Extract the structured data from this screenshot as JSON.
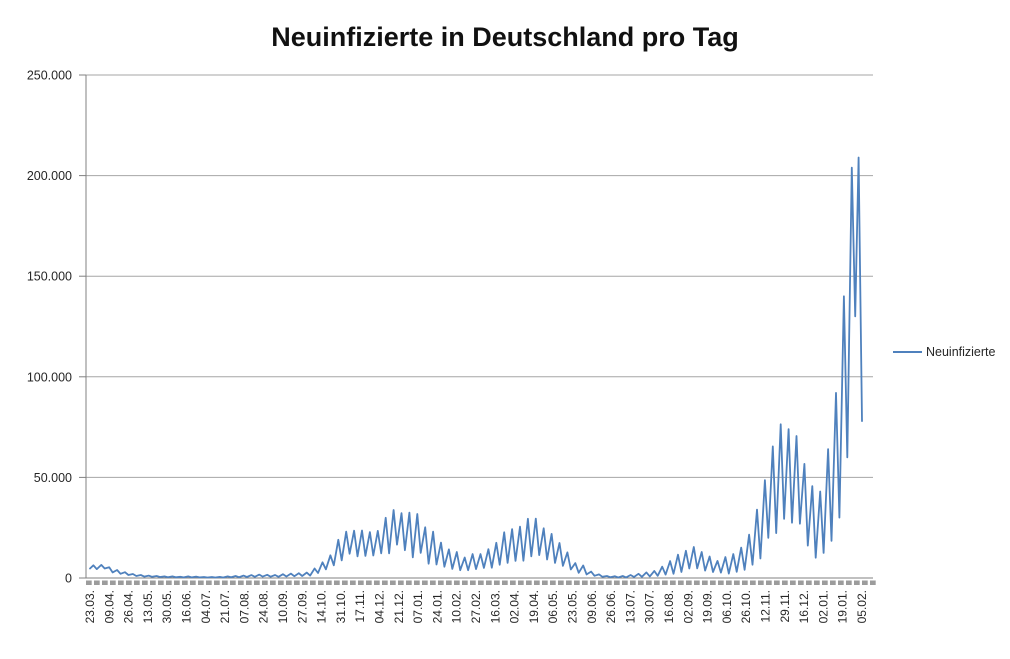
{
  "chart_data": {
    "type": "line",
    "title": "Neuinfizierte in Deutschland pro Tag",
    "legend": {
      "position": "right",
      "entries": [
        {
          "label": "Neuinfizierte",
          "color": "#4F81BD"
        }
      ]
    },
    "grid": "horizontal-only",
    "y_axis": {
      "range": [
        0,
        250000
      ],
      "tick_step": 50000,
      "ticks": [
        {
          "value": 0,
          "label": "0"
        },
        {
          "value": 50000,
          "label": "50.000"
        },
        {
          "value": 100000,
          "label": "100.000"
        },
        {
          "value": 150000,
          "label": "150.000"
        },
        {
          "value": 200000,
          "label": "200.000"
        },
        {
          "value": 250000,
          "label": "250.000"
        }
      ]
    },
    "x_axis": {
      "total_days": 685,
      "labels": [
        "23.03.",
        "09.04.",
        "26.04.",
        "13.05.",
        "30.05.",
        "16.06.",
        "04.07.",
        "21.07.",
        "07.08.",
        "24.08.",
        "10.09.",
        "27.09.",
        "14.10.",
        "31.10.",
        "17.11.",
        "04.12.",
        "21.12.",
        "07.01.",
        "24.01.",
        "10.02.",
        "27.02.",
        "16.03.",
        "02.04.",
        "19.04.",
        "06.05.",
        "23.05.",
        "09.06.",
        "26.06.",
        "13.07.",
        "30.07.",
        "16.08.",
        "02.09.",
        "19.09.",
        "06.10.",
        "26.10.",
        "12.11.",
        "29.11.",
        "16.12.",
        "02.01.",
        "19.01.",
        "05.02."
      ]
    },
    "series": [
      {
        "name": "Neuinfizierte",
        "color": "#4F81BD",
        "points_format": "[day_index, daily_new_infections]",
        "points": [
          [
            0,
            4700
          ],
          [
            3,
            6300
          ],
          [
            6,
            4400
          ],
          [
            10,
            6500
          ],
          [
            13,
            4700
          ],
          [
            17,
            5300
          ],
          [
            20,
            2800
          ],
          [
            24,
            4000
          ],
          [
            27,
            2100
          ],
          [
            31,
            2900
          ],
          [
            34,
            1500
          ],
          [
            38,
            2000
          ],
          [
            41,
            1000
          ],
          [
            45,
            1500
          ],
          [
            48,
            700
          ],
          [
            52,
            1200
          ],
          [
            55,
            600
          ],
          [
            59,
            1000
          ],
          [
            62,
            500
          ],
          [
            66,
            800
          ],
          [
            69,
            400
          ],
          [
            73,
            800
          ],
          [
            76,
            350
          ],
          [
            80,
            600
          ],
          [
            83,
            300
          ],
          [
            87,
            800
          ],
          [
            90,
            300
          ],
          [
            94,
            700
          ],
          [
            97,
            300
          ],
          [
            101,
            500
          ],
          [
            104,
            250
          ],
          [
            108,
            500
          ],
          [
            111,
            250
          ],
          [
            115,
            550
          ],
          [
            118,
            250
          ],
          [
            122,
            800
          ],
          [
            125,
            350
          ],
          [
            129,
            1000
          ],
          [
            132,
            400
          ],
          [
            136,
            1200
          ],
          [
            139,
            500
          ],
          [
            143,
            1450
          ],
          [
            146,
            600
          ],
          [
            150,
            1700
          ],
          [
            153,
            700
          ],
          [
            157,
            1600
          ],
          [
            160,
            650
          ],
          [
            164,
            1500
          ],
          [
            167,
            600
          ],
          [
            171,
            1900
          ],
          [
            174,
            750
          ],
          [
            178,
            2200
          ],
          [
            181,
            900
          ],
          [
            185,
            2400
          ],
          [
            188,
            1000
          ],
          [
            192,
            2700
          ],
          [
            195,
            1200
          ],
          [
            199,
            4700
          ],
          [
            202,
            2500
          ],
          [
            206,
            7800
          ],
          [
            209,
            4300
          ],
          [
            213,
            11300
          ],
          [
            216,
            6300
          ],
          [
            220,
            19000
          ],
          [
            223,
            8800
          ],
          [
            227,
            23000
          ],
          [
            230,
            12100
          ],
          [
            234,
            23500
          ],
          [
            237,
            10800
          ],
          [
            241,
            23600
          ],
          [
            244,
            11000
          ],
          [
            248,
            22800
          ],
          [
            251,
            11200
          ],
          [
            255,
            23400
          ],
          [
            258,
            12300
          ],
          [
            262,
            29900
          ],
          [
            265,
            12300
          ],
          [
            269,
            33800
          ],
          [
            272,
            16600
          ],
          [
            276,
            32200
          ],
          [
            279,
            13800
          ],
          [
            283,
            32500
          ],
          [
            286,
            10300
          ],
          [
            290,
            31800
          ],
          [
            293,
            12500
          ],
          [
            297,
            25200
          ],
          [
            300,
            7100
          ],
          [
            304,
            23000
          ],
          [
            307,
            6700
          ],
          [
            311,
            17600
          ],
          [
            314,
            5600
          ],
          [
            318,
            14200
          ],
          [
            321,
            4500
          ],
          [
            325,
            12900
          ],
          [
            328,
            3900
          ],
          [
            332,
            10200
          ],
          [
            335,
            3900
          ],
          [
            339,
            11900
          ],
          [
            342,
            4400
          ],
          [
            346,
            11900
          ],
          [
            349,
            5000
          ],
          [
            353,
            14300
          ],
          [
            356,
            5100
          ],
          [
            360,
            17500
          ],
          [
            363,
            6600
          ],
          [
            367,
            22700
          ],
          [
            370,
            7500
          ],
          [
            374,
            24300
          ],
          [
            377,
            8500
          ],
          [
            381,
            25500
          ],
          [
            384,
            8600
          ],
          [
            388,
            29400
          ],
          [
            391,
            10800
          ],
          [
            395,
            29500
          ],
          [
            398,
            11400
          ],
          [
            402,
            24700
          ],
          [
            405,
            9200
          ],
          [
            409,
            21900
          ],
          [
            412,
            7500
          ],
          [
            416,
            17400
          ],
          [
            419,
            6000
          ],
          [
            423,
            12700
          ],
          [
            426,
            4200
          ],
          [
            430,
            7400
          ],
          [
            433,
            2600
          ],
          [
            437,
            6200
          ],
          [
            440,
            1800
          ],
          [
            444,
            3200
          ],
          [
            447,
            1100
          ],
          [
            451,
            1800
          ],
          [
            454,
            600
          ],
          [
            458,
            1000
          ],
          [
            461,
            400
          ],
          [
            465,
            900
          ],
          [
            468,
            250
          ],
          [
            472,
            1000
          ],
          [
            475,
            300
          ],
          [
            479,
            1500
          ],
          [
            482,
            500
          ],
          [
            486,
            2100
          ],
          [
            489,
            600
          ],
          [
            493,
            2800
          ],
          [
            496,
            800
          ],
          [
            500,
            3500
          ],
          [
            503,
            1100
          ],
          [
            507,
            5600
          ],
          [
            510,
            1700
          ],
          [
            514,
            8400
          ],
          [
            517,
            2100
          ],
          [
            521,
            11600
          ],
          [
            524,
            3000
          ],
          [
            528,
            13500
          ],
          [
            531,
            4700
          ],
          [
            535,
            15400
          ],
          [
            538,
            4800
          ],
          [
            542,
            12900
          ],
          [
            545,
            3700
          ],
          [
            549,
            10700
          ],
          [
            552,
            3000
          ],
          [
            556,
            8500
          ],
          [
            559,
            2700
          ],
          [
            563,
            10400
          ],
          [
            566,
            2200
          ],
          [
            570,
            11900
          ],
          [
            573,
            3100
          ],
          [
            577,
            15100
          ],
          [
            580,
            4100
          ],
          [
            584,
            21500
          ],
          [
            587,
            6600
          ],
          [
            591,
            34000
          ],
          [
            594,
            9700
          ],
          [
            598,
            48600
          ],
          [
            601,
            20000
          ],
          [
            605,
            65400
          ],
          [
            608,
            22300
          ],
          [
            612,
            76400
          ],
          [
            615,
            29400
          ],
          [
            619,
            74000
          ],
          [
            622,
            27500
          ],
          [
            626,
            70600
          ],
          [
            629,
            27000
          ],
          [
            633,
            56700
          ],
          [
            636,
            16100
          ],
          [
            640,
            45700
          ],
          [
            643,
            10100
          ],
          [
            647,
            43000
          ],
          [
            650,
            12500
          ],
          [
            654,
            64000
          ],
          [
            657,
            18500
          ],
          [
            661,
            92000
          ],
          [
            664,
            30000
          ],
          [
            668,
            140000
          ],
          [
            671,
            60000
          ],
          [
            675,
            204000
          ],
          [
            678,
            130000
          ],
          [
            681,
            209000
          ],
          [
            684,
            78000
          ]
        ]
      }
    ],
    "style_colors": {
      "gridline": "#A6A6A6",
      "axis_line": "#808080",
      "tick_strip": "#9C9C9C",
      "label_text": "#262626"
    }
  }
}
